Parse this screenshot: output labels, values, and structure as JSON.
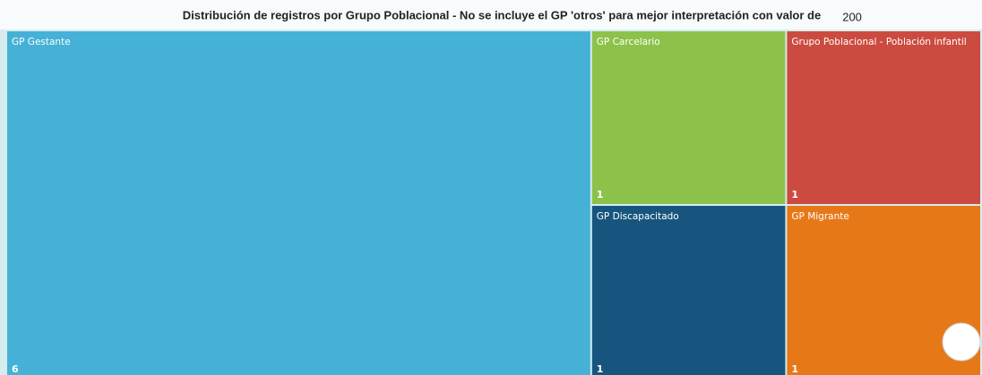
{
  "chart_data": {
    "type": "treemap",
    "title": "Distribución de registros por Grupo Poblacional - No se incluye el GP 'otros' para mejor interpretación con valor de",
    "title_value": 200,
    "categories": [
      "GP Gestante",
      "GP Carcelario",
      "GP Discapacitado",
      "Grupo Poblacional - Población infantil",
      "GP Migrante"
    ],
    "values": [
      6,
      1,
      1,
      1,
      1
    ],
    "colors": [
      "#45b1d6",
      "#8dc24a",
      "#17557e",
      "#cc4b40",
      "#e77818"
    ]
  }
}
